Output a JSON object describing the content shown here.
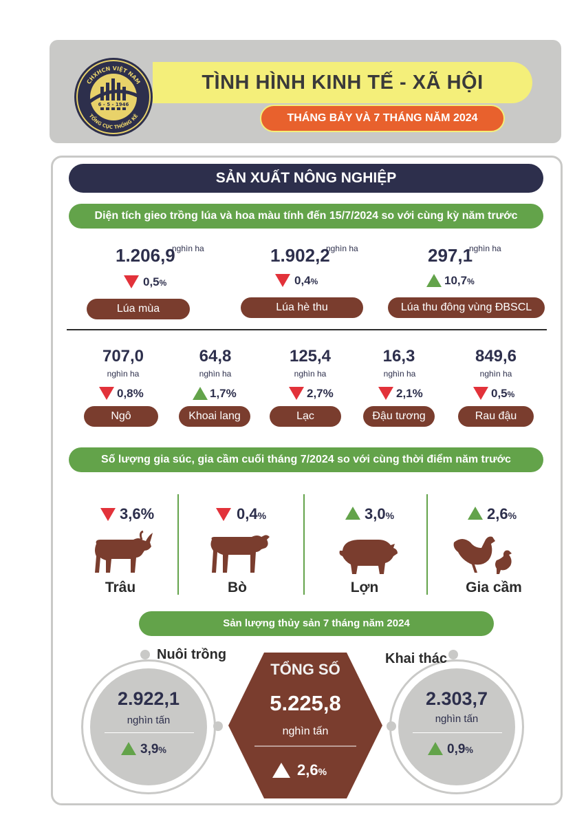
{
  "header": {
    "title": "TÌNH HÌNH KINH TẾ - XÃ HỘI",
    "subtitle": "THÁNG BẢY VÀ 7 THÁNG NĂM 2024",
    "logo_top": "CHXHCN VIỆT NAM",
    "logo_date": "6 - 5 - 1946",
    "logo_bottom": "TỔNG CỤC THỐNG KÊ"
  },
  "section_title": "SẢN XUẤT NÔNG NGHIỆP",
  "crops": {
    "heading": "Diện tích gieo trồng lúa và hoa màu tính đến 15/7/2024 so với cùng kỳ năm trước",
    "rice": [
      {
        "value": "1.206,9",
        "unit": "nghìn ha",
        "direction": "down",
        "pct": "0,5",
        "pct_sign": "%",
        "label": "Lúa mùa"
      },
      {
        "value": "1.902,2",
        "unit": "nghìn ha",
        "direction": "down",
        "pct": "0,4",
        "pct_sign": "%",
        "label": "Lúa hè thu"
      },
      {
        "value": "297,1",
        "unit": "nghìn ha",
        "direction": "up",
        "pct": "10,7",
        "pct_sign": "%",
        "label": "Lúa thu đông vùng ĐBSCL"
      }
    ],
    "others": [
      {
        "value": "707,0",
        "unit": "nghìn ha",
        "direction": "down",
        "pct": "0,8%",
        "label": "Ngô"
      },
      {
        "value": "64,8",
        "unit": "nghìn ha",
        "direction": "up",
        "pct": "1,7%",
        "label": "Khoai lang"
      },
      {
        "value": "125,4",
        "unit": "nghìn ha",
        "direction": "down",
        "pct": "2,7%",
        "label": "Lạc"
      },
      {
        "value": "16,3",
        "unit": "nghìn ha",
        "direction": "down",
        "pct": "2,1%",
        "label": "Đậu tương"
      },
      {
        "value": "849,6",
        "unit": "nghìn ha",
        "direction": "down",
        "pct": "0,5",
        "pct_sign": "%",
        "label": "Rau đậu"
      }
    ]
  },
  "livestock": {
    "heading": "Số lượng gia súc, gia cầm cuối tháng 7/2024 so với cùng thời điểm năm trước",
    "items": [
      {
        "label": "Trâu",
        "direction": "down",
        "pct": "3,6%"
      },
      {
        "label": "Bò",
        "direction": "down",
        "pct": "0,4",
        "pct_sign": "%"
      },
      {
        "label": "Lợn",
        "direction": "up",
        "pct": "3,0",
        "pct_sign": "%"
      },
      {
        "label": "Gia cầm",
        "direction": "up",
        "pct": "2,6",
        "pct_sign": "%"
      }
    ]
  },
  "fishery": {
    "heading": "Sản lượng thủy sản 7 tháng năm 2024",
    "aquaculture": {
      "label": "Nuôi trồng",
      "value": "2.922,1",
      "unit": "nghìn tấn",
      "pct": "3,9",
      "pct_sign": "%"
    },
    "total": {
      "label": "TỔNG SỐ",
      "value": "5.225,8",
      "unit": "nghìn tấn",
      "pct": "2,6",
      "pct_sign": "%"
    },
    "capture": {
      "label": "Khai thác",
      "value": "2.303,7",
      "unit": "nghìn tấn",
      "pct": "0,9",
      "pct_sign": "%"
    }
  },
  "colors": {
    "navy": "#2d2f4c",
    "green": "#63a34a",
    "red": "#e2323a",
    "brown": "#7a3d2e",
    "orange": "#e8612d",
    "yellow": "#f4ef7a",
    "gray": "#c9c9c7"
  }
}
